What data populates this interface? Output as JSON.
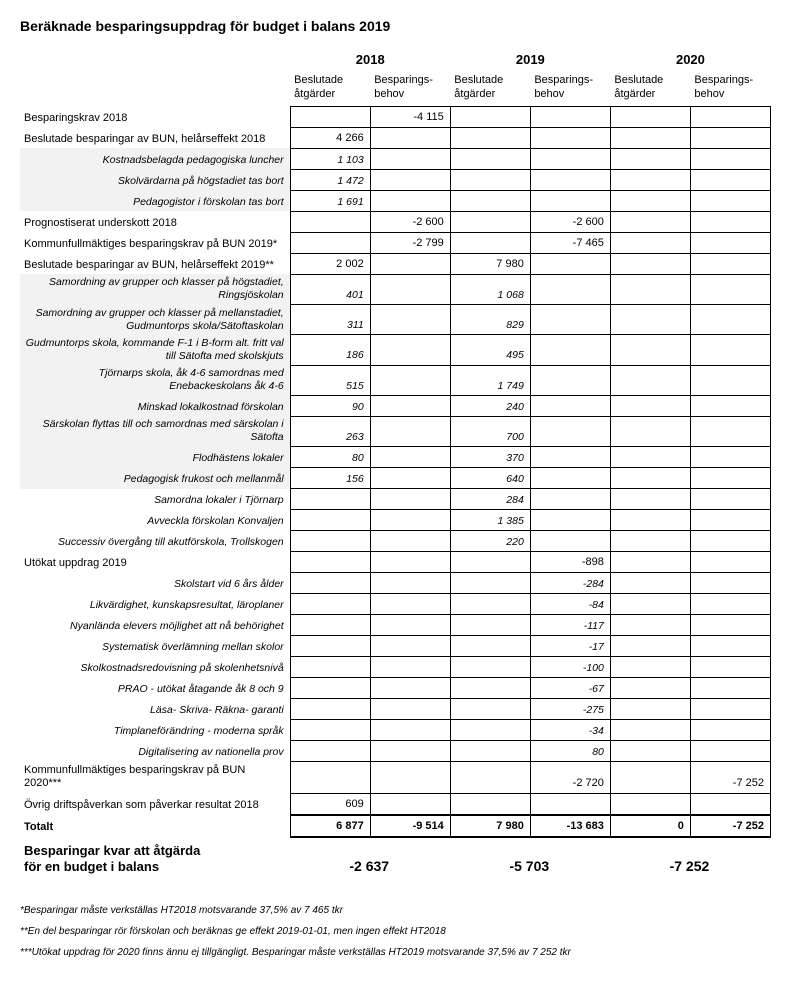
{
  "title": "Beräknade besparingsuppdrag för budget i balans 2019",
  "years": [
    "2018",
    "2019",
    "2020"
  ],
  "col_sub": [
    "Beslutade åtgärder",
    "Besparings-behov"
  ],
  "rows": [
    {
      "k": "main",
      "label": "Besparingskrav 2018",
      "v": [
        "",
        "-4 115",
        "",
        "",
        "",
        ""
      ]
    },
    {
      "k": "main",
      "label": "Beslutade besparingar av BUN, helårseffekt 2018",
      "v": [
        "4 266",
        "",
        "",
        "",
        "",
        ""
      ]
    },
    {
      "k": "sub",
      "stripe": true,
      "label": "Kostnadsbelagda pedagogiska luncher",
      "v": [
        "1 103",
        "",
        "",
        "",
        "",
        ""
      ]
    },
    {
      "k": "sub",
      "stripe": true,
      "label": "Skolvärdarna på högstadiet tas bort",
      "v": [
        "1 472",
        "",
        "",
        "",
        "",
        ""
      ]
    },
    {
      "k": "sub",
      "stripe": true,
      "label": "Pedagogistor i förskolan tas bort",
      "v": [
        "1 691",
        "",
        "",
        "",
        "",
        ""
      ]
    },
    {
      "k": "main",
      "label": "Prognostiserat underskott 2018",
      "v": [
        "",
        "-2 600",
        "",
        "-2 600",
        "",
        ""
      ]
    },
    {
      "k": "main",
      "label": "Kommunfullmäktiges besparingskrav på BUN 2019*",
      "v": [
        "",
        "-2 799",
        "",
        "-7 465",
        "",
        ""
      ]
    },
    {
      "k": "main",
      "label": "Beslutade besparingar av BUN, helårseffekt 2019**",
      "v": [
        "2 002",
        "",
        "7 980",
        "",
        "",
        ""
      ]
    },
    {
      "k": "sub",
      "stripe": true,
      "label": "Samordning av grupper och klasser på högstadiet, Ringsjöskolan",
      "v": [
        "401",
        "",
        "1 068",
        "",
        "",
        ""
      ]
    },
    {
      "k": "sub",
      "stripe": true,
      "label": "Samordning av grupper och klasser på mellanstadiet, Gudmuntorps skola/Sätoftaskolan",
      "v": [
        "311",
        "",
        "829",
        "",
        "",
        ""
      ]
    },
    {
      "k": "sub",
      "stripe": true,
      "label": "Gudmuntorps skola, kommande F-1 i B-form alt. fritt val till Sätofta med skolskjuts",
      "v": [
        "186",
        "",
        "495",
        "",
        "",
        ""
      ]
    },
    {
      "k": "sub",
      "stripe": true,
      "label": "Tjörnarps skola, åk 4-6 samordnas med Enebackeskolans åk 4-6",
      "v": [
        "515",
        "",
        "1 749",
        "",
        "",
        ""
      ]
    },
    {
      "k": "sub",
      "stripe": true,
      "label": "Minskad lokalkostnad förskolan",
      "v": [
        "90",
        "",
        "240",
        "",
        "",
        ""
      ]
    },
    {
      "k": "sub",
      "stripe": true,
      "label": "Särskolan flyttas till och samordnas med särskolan i Sätofta",
      "v": [
        "263",
        "",
        "700",
        "",
        "",
        ""
      ]
    },
    {
      "k": "sub",
      "stripe": true,
      "label": "Flodhästens lokaler",
      "v": [
        "80",
        "",
        "370",
        "",
        "",
        ""
      ]
    },
    {
      "k": "sub",
      "stripe": true,
      "label": "Pedagogisk frukost och mellanmål",
      "v": [
        "156",
        "",
        "640",
        "",
        "",
        ""
      ]
    },
    {
      "k": "sub",
      "label": "Samordna lokaler i Tjörnarp",
      "v": [
        "",
        "",
        "284",
        "",
        "",
        ""
      ]
    },
    {
      "k": "sub",
      "label": "Avveckla förskolan Konvaljen",
      "v": [
        "",
        "",
        "1 385",
        "",
        "",
        ""
      ]
    },
    {
      "k": "sub",
      "label": "Successiv övergång till akutförskola, Trollskogen",
      "v": [
        "",
        "",
        "220",
        "",
        "",
        ""
      ]
    },
    {
      "k": "main",
      "label": "Utökat uppdrag 2019",
      "v": [
        "",
        "",
        "",
        "-898",
        "",
        ""
      ]
    },
    {
      "k": "sub",
      "label": "Skolstart vid 6 års ålder",
      "v": [
        "",
        "",
        "",
        "-284",
        "",
        ""
      ]
    },
    {
      "k": "sub",
      "label": "Likvärdighet, kunskapsresultat, läroplaner",
      "v": [
        "",
        "",
        "",
        "-84",
        "",
        ""
      ]
    },
    {
      "k": "sub",
      "label": "Nyanlända elevers möjlighet att nå behörighet",
      "v": [
        "",
        "",
        "",
        "-117",
        "",
        ""
      ]
    },
    {
      "k": "sub",
      "label": "Systematisk överlämning mellan skolor",
      "v": [
        "",
        "",
        "",
        "-17",
        "",
        ""
      ]
    },
    {
      "k": "sub",
      "label": "Skolkostnadsredovisning på skolenhetsnivå",
      "v": [
        "",
        "",
        "",
        "-100",
        "",
        ""
      ]
    },
    {
      "k": "sub",
      "label": "PRAO - utökat åtagande åk 8 och 9",
      "v": [
        "",
        "",
        "",
        "-67",
        "",
        ""
      ]
    },
    {
      "k": "sub",
      "label": "Läsa- Skriva- Räkna- garanti",
      "v": [
        "",
        "",
        "",
        "-275",
        "",
        ""
      ]
    },
    {
      "k": "sub",
      "label": "Timplaneförändring - moderna språk",
      "v": [
        "",
        "",
        "",
        "-34",
        "",
        ""
      ]
    },
    {
      "k": "sub",
      "label": "Digitalisering av nationella prov",
      "v": [
        "",
        "",
        "",
        "80",
        "",
        ""
      ]
    },
    {
      "k": "main",
      "label": "Kommunfullmäktiges besparingskrav på BUN 2020***",
      "v": [
        "",
        "",
        "",
        "-2 720",
        "",
        "-7 252"
      ]
    },
    {
      "k": "main",
      "label": "Övrig driftspåverkan som påverkar resultat 2018",
      "v": [
        "609",
        "",
        "",
        "",
        "",
        ""
      ]
    }
  ],
  "total_label": "Totalt",
  "total_values": [
    "6 877",
    "-9 514",
    "7 980",
    "-13 683",
    "0",
    "-7 252"
  ],
  "bottom_label_1": "Besparingar kvar att åtgärda",
  "bottom_label_2": "för en budget i balans",
  "bottom_values": [
    "-2 637",
    "-5 703",
    "-7 252"
  ],
  "footnotes": [
    "*Besparingar måste verkställas HT2018 motsvarande 37,5% av 7 465 tkr",
    "**En del besparingar rör förskolan och beräknas ge effekt 2019-01-01, men ingen effekt HT2018",
    "***Utökat uppdrag för 2020 finns ännu ej tillgängligt. Besparingar måste verkställas HT2019 motsvarande 37,5% av 7 252 tkr"
  ]
}
